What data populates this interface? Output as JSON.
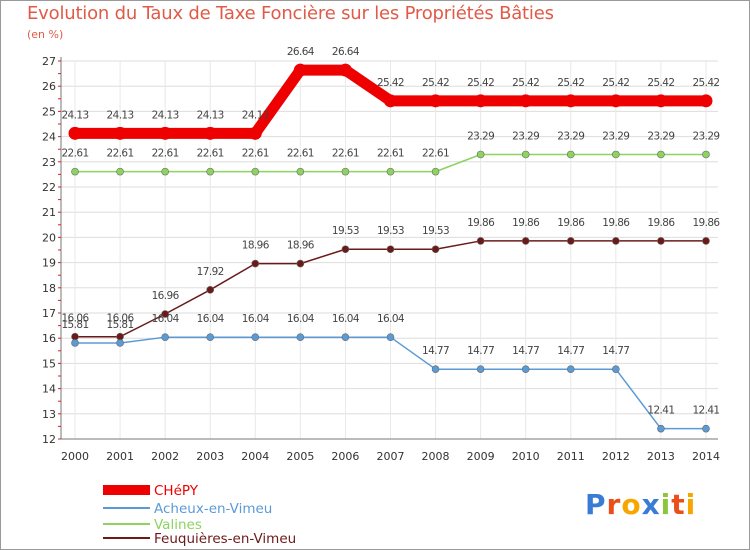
{
  "chart_data": {
    "type": "line",
    "title": "Evolution du Taux de Taxe Foncière sur les Propriétés Bâties",
    "ylabel": "(en %)",
    "xlabel": "",
    "x": [
      "2000",
      "2001",
      "2002",
      "2003",
      "2004",
      "2005",
      "2006",
      "2007",
      "2008",
      "2009",
      "2010",
      "2011",
      "2012",
      "2013",
      "2014"
    ],
    "ylim": [
      12,
      27
    ],
    "yticks": [
      12,
      13,
      14,
      15,
      16,
      17,
      18,
      19,
      20,
      21,
      22,
      23,
      24,
      25,
      26,
      27
    ],
    "series": [
      {
        "name": "CHéPY",
        "color": "#ee0000",
        "values": [
          24.13,
          24.13,
          24.13,
          24.13,
          24.13,
          26.64,
          26.64,
          25.42,
          25.42,
          25.42,
          25.42,
          25.42,
          25.42,
          25.42,
          25.42
        ],
        "labels": [
          "24.13",
          "24.13",
          "24.13",
          "24.13",
          "24.13",
          "26.64",
          "26.64",
          "25.42",
          "25.42",
          "25.42",
          "25.42",
          "25.42",
          "25.42",
          "25.42",
          "25.42"
        ]
      },
      {
        "name": "Acheux-en-Vimeu",
        "color": "#5b9bd5",
        "values": [
          15.81,
          15.81,
          16.04,
          16.04,
          16.04,
          16.04,
          16.04,
          16.04,
          14.77,
          14.77,
          14.77,
          14.77,
          14.77,
          12.41,
          12.41
        ],
        "labels": [
          "15.81",
          "15.81",
          "16.04",
          "16.04",
          "16.04",
          "16.04",
          "16.04",
          "16.04",
          "14.77",
          "14.77",
          "14.77",
          "14.77",
          "14.77",
          "12.41",
          "12.41"
        ]
      },
      {
        "name": "Valines",
        "color": "#8dd35f",
        "values": [
          22.61,
          22.61,
          22.61,
          22.61,
          22.61,
          22.61,
          22.61,
          22.61,
          22.61,
          23.29,
          23.29,
          23.29,
          23.29,
          23.29,
          23.29
        ],
        "labels": [
          "22.61",
          "22.61",
          "22.61",
          "22.61",
          "22.61",
          "22.61",
          "22.61",
          "22.61",
          "22.61",
          "23.29",
          "23.29",
          "23.29",
          "23.29",
          "23.29",
          "23.29"
        ]
      },
      {
        "name": "Feuquières-en-Vimeu",
        "color": "#6b1a1a",
        "values": [
          16.06,
          16.06,
          16.96,
          17.92,
          18.96,
          18.96,
          19.53,
          19.53,
          19.53,
          19.86,
          19.86,
          19.86,
          19.86,
          19.86,
          19.86
        ],
        "labels": [
          "16.06",
          "16.06",
          "16.96",
          "17.92",
          "18.96",
          "18.96",
          "19.53",
          "19.53",
          "19.53",
          "19.86",
          "19.86",
          "19.86",
          "19.86",
          "19.86",
          "19.86"
        ]
      }
    ]
  },
  "brand": {
    "letters": [
      "P",
      "r",
      "o",
      "x",
      "i",
      "t",
      "i"
    ],
    "colors": [
      "#3a7bd5",
      "#e94e1b",
      "#f7a600",
      "#3a7bd5",
      "#8cc63f",
      "#e94e1b",
      "#f7a600"
    ]
  }
}
